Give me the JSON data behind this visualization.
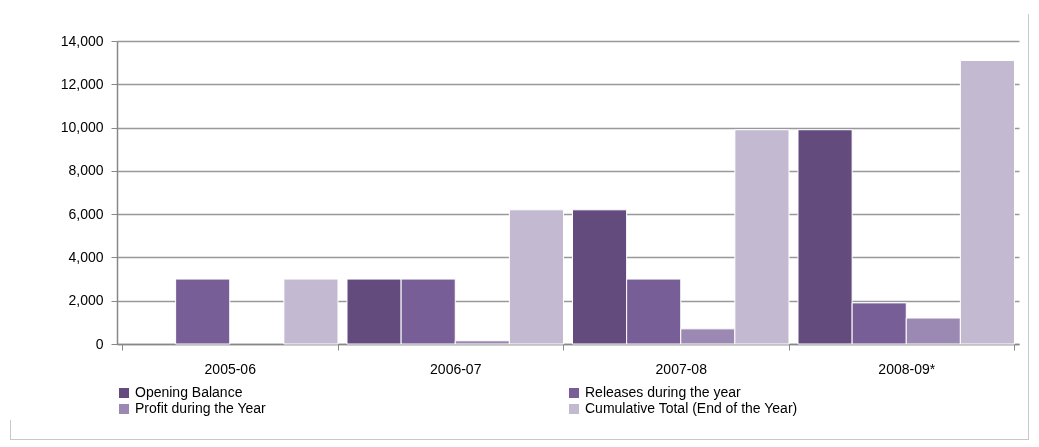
{
  "chart_data": {
    "type": "bar",
    "categories": [
      "2005-06",
      "2006-07",
      "2007-08",
      "2008-09*"
    ],
    "series": [
      {
        "name": "Opening Balance",
        "color": "#634c7d",
        "values": [
          null,
          3000,
          6200,
          9900
        ]
      },
      {
        "name": "Releases during the year",
        "color": "#775e96",
        "values": [
          3000,
          3000,
          3000,
          1900
        ]
      },
      {
        "name": "Profit during the Year",
        "color": "#9c89b3",
        "values": [
          null,
          150,
          700,
          1200
        ]
      },
      {
        "name": "Cumulative Total  (End of the Year)",
        "color": "#c3b9d0",
        "values": [
          3000,
          6200,
          9900,
          13100
        ]
      }
    ],
    "ylim": [
      0,
      14000
    ],
    "yticks": [
      0,
      {
        "value": 2000,
        "label": "2,000"
      },
      {
        "value": 4000,
        "label": "4,000"
      },
      {
        "value": 6000,
        "label": "6,000"
      },
      {
        "value": 8000,
        "label": "8,000"
      },
      {
        "value": 10000,
        "label": "10,000"
      },
      {
        "value": 12000,
        "label": "12,000"
      },
      {
        "value": 14000,
        "label": "14,000"
      }
    ],
    "grid": "y",
    "legend": "bottom"
  }
}
